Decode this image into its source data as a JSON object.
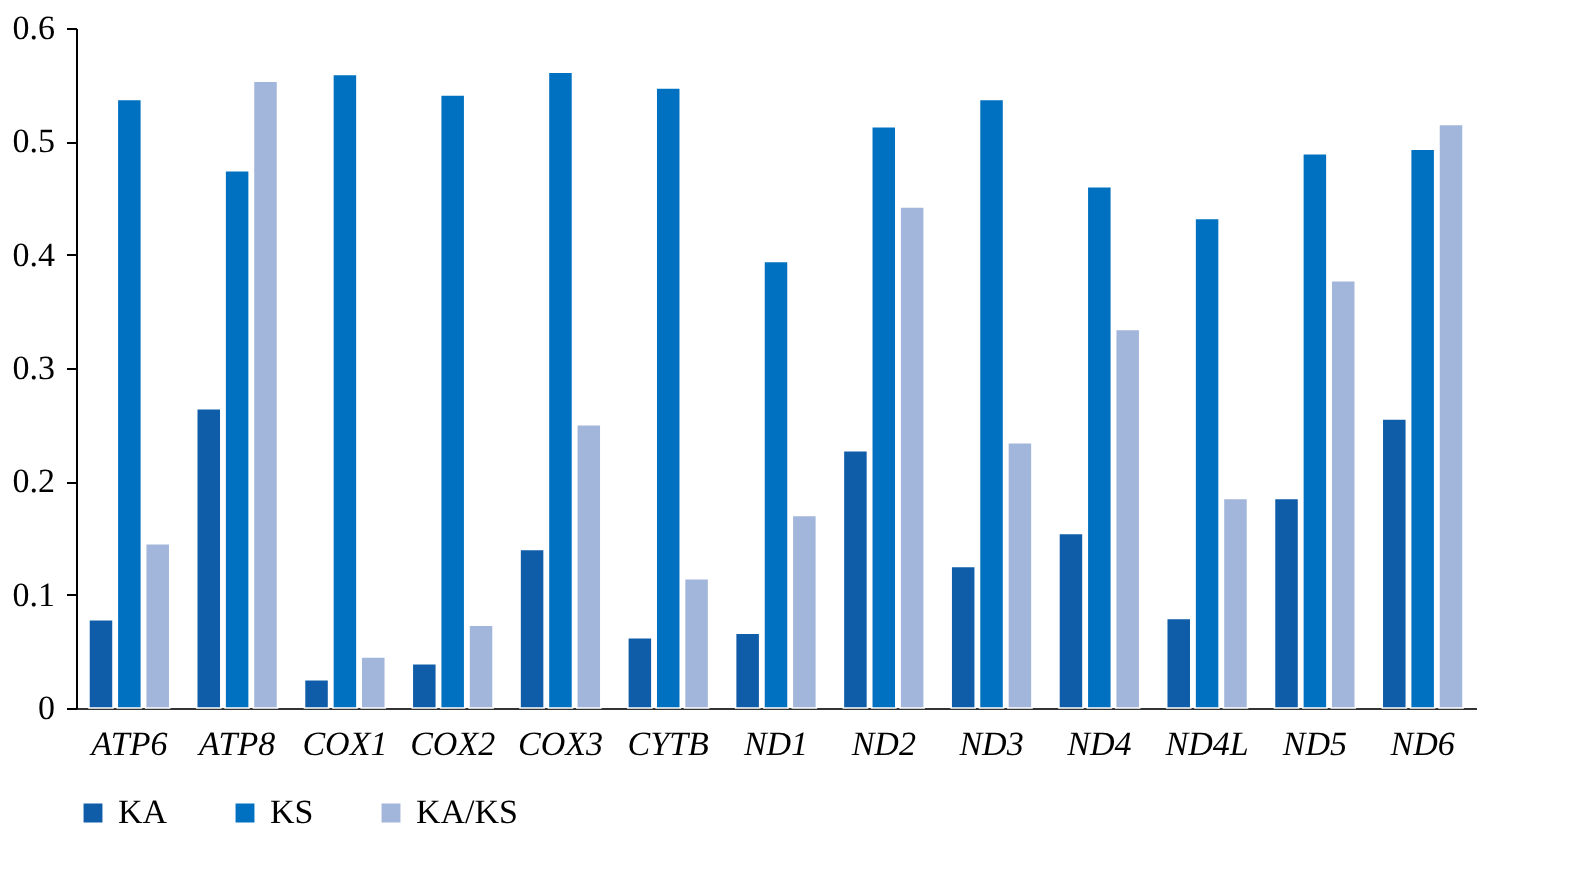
{
  "chart_data": {
    "type": "bar",
    "categories": [
      "ATP6",
      "ATP8",
      "COX1",
      "COX2",
      "COX3",
      "CYTB",
      "ND1",
      "ND2",
      "ND3",
      "ND4",
      "ND4L",
      "ND5",
      "ND6"
    ],
    "series": [
      {
        "name": "KA",
        "color": "#0f5ca8",
        "values": [
          0.078,
          0.264,
          0.025,
          0.039,
          0.14,
          0.062,
          0.066,
          0.227,
          0.125,
          0.154,
          0.079,
          0.185,
          0.255
        ]
      },
      {
        "name": "KS",
        "color": "#0070c0",
        "values": [
          0.537,
          0.474,
          0.559,
          0.541,
          0.561,
          0.547,
          0.394,
          0.513,
          0.537,
          0.46,
          0.432,
          0.489,
          0.493
        ]
      },
      {
        "name": "KA/KS",
        "color": "#a2b5db",
        "values": [
          0.145,
          0.553,
          0.045,
          0.073,
          0.25,
          0.114,
          0.17,
          0.442,
          0.234,
          0.334,
          0.185,
          0.377,
          0.515
        ]
      }
    ],
    "ylim": [
      0,
      0.6
    ],
    "yticks": [
      0,
      0.1,
      0.2,
      0.3,
      0.4,
      0.5,
      0.6
    ],
    "grid": false,
    "legend": "bottom"
  }
}
